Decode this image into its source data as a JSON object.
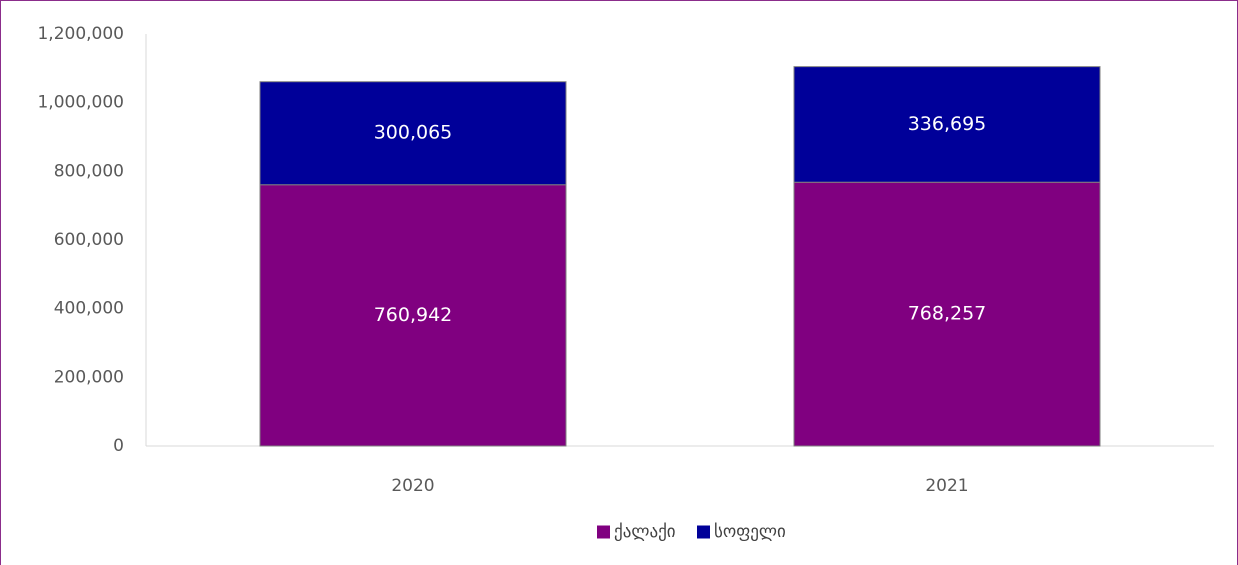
{
  "chart_data": {
    "type": "bar",
    "stacked": true,
    "title": "",
    "xlabel": "",
    "ylabel": "",
    "categories": [
      "2020",
      "2021"
    ],
    "series": [
      {
        "name": "ქალაქი",
        "values": [
          760942,
          768257
        ],
        "color": "#800080",
        "labels": [
          "760,942",
          "768,257"
        ]
      },
      {
        "name": "სოფელი",
        "values": [
          300065,
          336695
        ],
        "color": "#000099",
        "labels": [
          "300,065",
          "336,695"
        ]
      }
    ],
    "ylim": [
      0,
      1200000
    ],
    "yticks": [
      0,
      200000,
      400000,
      600000,
      800000,
      1000000,
      1200000
    ],
    "ytick_labels": [
      "0",
      "200,000",
      "400,000",
      "600,000",
      "800,000",
      "1,000,000",
      "1,200,000"
    ],
    "grid": false,
    "legend_position": "bottom",
    "frame_color": "#8b2d8b"
  }
}
